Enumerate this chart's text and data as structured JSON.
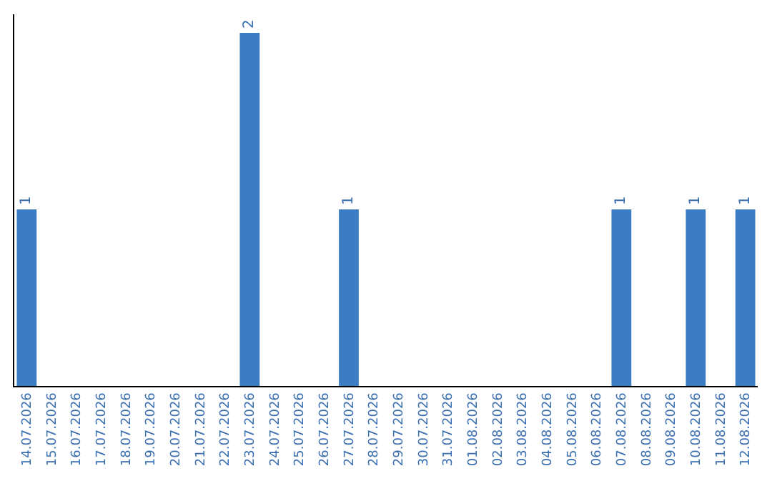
{
  "chart_data": {
    "type": "bar",
    "categories": [
      "14.07.2026",
      "15.07.2026",
      "16.07.2026",
      "17.07.2026",
      "18.07.2026",
      "19.07.2026",
      "20.07.2026",
      "21.07.2026",
      "22.07.2026",
      "23.07.2026",
      "24.07.2026",
      "25.07.2026",
      "26.07.2026",
      "27.07.2026",
      "28.07.2026",
      "29.07.2026",
      "30.07.2026",
      "31.07.2026",
      "01.08.2026",
      "02.08.2026",
      "03.08.2026",
      "04.08.2026",
      "05.08.2026",
      "06.08.2026",
      "07.08.2026",
      "08.08.2026",
      "09.08.2026",
      "10.08.2026",
      "11.08.2026",
      "12.08.2026"
    ],
    "values": [
      1,
      0,
      0,
      0,
      0,
      0,
      0,
      0,
      0,
      2,
      0,
      0,
      0,
      1,
      0,
      0,
      0,
      0,
      0,
      0,
      0,
      0,
      0,
      0,
      1,
      0,
      0,
      1,
      0,
      1
    ],
    "value_labels": [
      "1",
      null,
      null,
      null,
      null,
      null,
      null,
      null,
      null,
      "2",
      null,
      null,
      null,
      "1",
      null,
      null,
      null,
      null,
      null,
      null,
      null,
      null,
      null,
      null,
      "1",
      null,
      null,
      "1",
      null,
      "1"
    ],
    "color": "#3b7dc4",
    "tick_labels": "x"
  }
}
